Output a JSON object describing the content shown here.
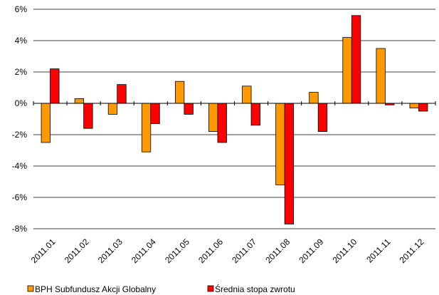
{
  "chart_data": {
    "type": "bar",
    "title": "",
    "xlabel": "",
    "ylabel": "",
    "ylim": [
      -8,
      6
    ],
    "yticks": [
      "6%",
      "4%",
      "2%",
      "0%",
      "-2%",
      "-4%",
      "-6%",
      "-8%"
    ],
    "categories": [
      "2011.01",
      "2011.02",
      "2011.03",
      "2011.04",
      "2011.05",
      "2011.06",
      "2011.07",
      "2011.08",
      "2011.09",
      "2011.10",
      "2011.11",
      "2011.12"
    ],
    "series": [
      {
        "name": "BPH Subfundusz Akcji Globalny",
        "color": "#FF9900",
        "values": [
          -2.5,
          0.3,
          -0.7,
          -3.1,
          1.4,
          -1.8,
          1.1,
          -5.2,
          0.7,
          4.2,
          3.5,
          -0.3
        ]
      },
      {
        "name": "Średnia stopa zwrotu",
        "color": "#FF0000",
        "values": [
          2.2,
          -1.6,
          1.2,
          -1.3,
          -0.7,
          -2.5,
          -1.4,
          -7.7,
          -1.8,
          5.6,
          -0.1,
          -0.5
        ]
      }
    ],
    "grid": true,
    "legend": "bottom-left"
  }
}
